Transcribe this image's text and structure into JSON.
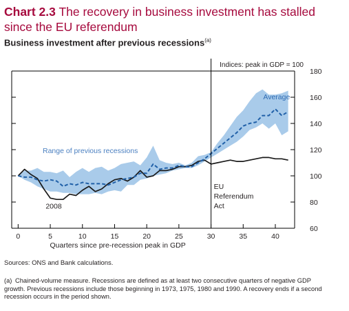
{
  "header": {
    "chart_number": "Chart 2.3",
    "title": "The recovery in business investment has stalled since the EU referendum",
    "subtitle": "Business investment after previous recessions",
    "subtitle_note": "(a)"
  },
  "chart_data": {
    "type": "line",
    "units_label": "Indices: peak in GDP = 100",
    "xlabel": "Quarters since pre-recession peak in GDP",
    "ylabel": "",
    "xlim": [
      -1,
      43
    ],
    "ylim": [
      60,
      180
    ],
    "x_ticks": [
      0,
      5,
      10,
      15,
      20,
      25,
      30,
      35,
      40
    ],
    "y_ticks": [
      60,
      80,
      100,
      120,
      140,
      160,
      180
    ],
    "grid": false,
    "colors": {
      "band": "#a9cbea",
      "average": "#2060a8",
      "series2008": "#1a1a1a",
      "vline": "#000000",
      "axis": "#000000"
    },
    "band": {
      "name": "Range of previous recessions",
      "x": [
        0,
        1,
        2,
        3,
        4,
        5,
        6,
        7,
        8,
        9,
        10,
        11,
        12,
        13,
        14,
        15,
        16,
        17,
        18,
        19,
        20,
        21,
        22,
        23,
        24,
        25,
        26,
        27,
        28,
        29,
        30,
        31,
        32,
        33,
        34,
        35,
        36,
        37,
        38,
        39,
        40,
        41,
        42
      ],
      "upper": [
        100,
        104,
        104,
        106,
        103,
        103,
        102,
        104,
        99,
        103,
        106,
        103,
        106,
        107,
        104,
        106,
        109,
        110,
        111,
        108,
        114,
        123,
        112,
        110,
        109,
        110,
        108,
        110,
        115,
        116,
        118,
        125,
        131,
        138,
        145,
        150,
        157,
        163,
        166,
        162,
        162,
        163,
        165
      ],
      "lower": [
        100,
        97,
        95,
        92,
        90,
        88,
        88,
        87,
        87,
        86,
        86,
        86,
        87,
        86,
        88,
        89,
        88,
        93,
        93,
        97,
        98,
        100,
        101,
        102,
        104,
        105,
        106,
        106,
        108,
        111,
        114,
        117,
        120,
        123,
        126,
        130,
        135,
        137,
        140,
        136,
        140,
        131,
        134
      ]
    },
    "average": {
      "name": "Average",
      "x": [
        0,
        1,
        2,
        3,
        4,
        5,
        6,
        7,
        8,
        9,
        10,
        11,
        12,
        13,
        14,
        15,
        16,
        17,
        18,
        19,
        20,
        21,
        22,
        23,
        24,
        25,
        26,
        27,
        28,
        29,
        30,
        31,
        32,
        33,
        34,
        35,
        36,
        37,
        38,
        39,
        40,
        41,
        42
      ],
      "values": [
        100,
        99,
        99,
        97,
        96,
        97,
        96,
        92,
        94,
        93,
        95,
        94,
        94,
        94,
        93,
        95,
        97,
        98,
        99,
        102,
        102,
        109,
        105,
        106,
        106,
        108,
        107,
        107,
        110,
        113,
        117,
        121,
        125,
        129,
        133,
        138,
        140,
        141,
        146,
        146,
        151,
        146,
        149
      ]
    },
    "series_2008": {
      "name": "2008",
      "x": [
        0,
        1,
        2,
        3,
        4,
        5,
        6,
        7,
        8,
        9,
        10,
        11,
        12,
        13,
        14,
        15,
        16,
        17,
        18,
        19,
        20,
        21,
        22,
        23,
        24,
        25,
        26,
        27,
        28,
        29,
        30,
        31,
        32,
        33,
        34,
        35,
        36,
        37,
        38,
        39,
        40,
        41,
        42
      ],
      "values": [
        100,
        105,
        101,
        98,
        90,
        83,
        82,
        82,
        86,
        85,
        89,
        92,
        88,
        90,
        94,
        97,
        98,
        96,
        99,
        104,
        99,
        100,
        104,
        104,
        105,
        107,
        107,
        108,
        111,
        112,
        109,
        110,
        111,
        112,
        111,
        111,
        112,
        113,
        114,
        114,
        113,
        113,
        112
      ]
    },
    "vline": {
      "x": 30,
      "label_lines": [
        "EU",
        "Referendum",
        "Act"
      ]
    },
    "annotations": {
      "range_label": "Range of previous recessions",
      "average_label": "Average",
      "series2008_label": "2008"
    }
  },
  "footer": {
    "sources": "Sources: ONS and Bank calculations.",
    "footnote_marker": "(a)",
    "footnote_text": "Chained-volume measure. Recessions are defined as at least two consecutive quarters of negative GDP growth. Previous recessions include those beginning in 1973, 1975, 1980 and 1990. A recovery ends if a second recession occurs in the period shown."
  }
}
